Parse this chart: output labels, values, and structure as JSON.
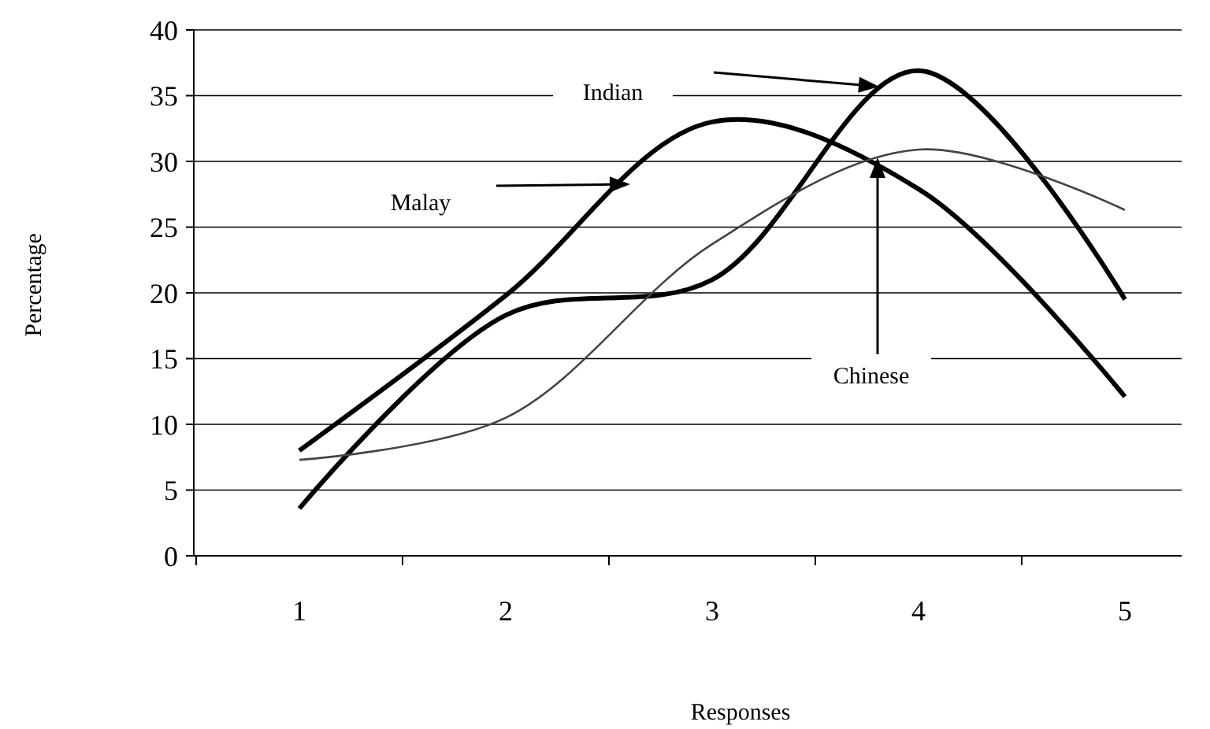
{
  "chart_data": {
    "type": "line",
    "xlabel": "Responses",
    "ylabel": "Percentage",
    "categories": [
      "1",
      "2",
      "3",
      "4",
      "5"
    ],
    "ylim": [
      0,
      40
    ],
    "yticks": [
      0,
      5,
      10,
      15,
      20,
      25,
      30,
      35,
      40
    ],
    "grid": "y",
    "marker": "none",
    "line_style": "solid",
    "annotations": [
      "Malay",
      "Indian",
      "Chinese"
    ],
    "series": [
      {
        "color": "#000000",
        "values": [
          8.0,
          19.8,
          33.0,
          27.9,
          12.1
        ]
      },
      {
        "color": "#000000",
        "values": [
          3.6,
          18.3,
          21.0,
          36.9,
          19.5
        ]
      },
      {
        "color": "#444444",
        "values": [
          7.3,
          10.5,
          23.7,
          30.9,
          26.3
        ]
      }
    ]
  }
}
